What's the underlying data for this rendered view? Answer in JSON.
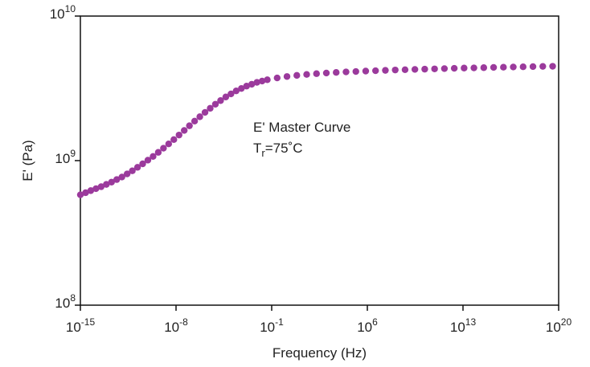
{
  "chart_data": {
    "type": "scatter",
    "xlabel": "Frequency (Hz)",
    "ylabel": "E' (Pa)",
    "x_scale": "log",
    "y_scale": "log",
    "xlim": [
      1e-15,
      1e+20
    ],
    "ylim": [
      100000000.0,
      10000000000.0
    ],
    "x_ticks": [
      {
        "base": "10",
        "exp": "-15",
        "value": 1e-15
      },
      {
        "base": "10",
        "exp": "-8",
        "value": 1e-08
      },
      {
        "base": "10",
        "exp": "-1",
        "value": 0.1
      },
      {
        "base": "10",
        "exp": "6",
        "value": 1000000.0
      },
      {
        "base": "10",
        "exp": "13",
        "value": 10000000000000.0
      },
      {
        "base": "10",
        "exp": "20",
        "value": 1e+20
      }
    ],
    "y_ticks": [
      {
        "base": "10",
        "exp": "8",
        "value": 100000000.0
      },
      {
        "base": "10",
        "exp": "9",
        "value": 1000000000.0
      },
      {
        "base": "10",
        "exp": "10",
        "value": 10000000000.0
      }
    ],
    "annotation": {
      "line1": "E' Master Curve",
      "line2_main": "T",
      "line2_sub": "r",
      "line2_rest": "=75˚C"
    },
    "grid": false,
    "marker_color": "#9b3a9c",
    "series": [
      {
        "log10_x": [
          -15.0,
          -14.24,
          -13.48,
          -12.72,
          -11.96,
          -11.2,
          -10.44,
          -9.67,
          -8.91,
          -8.15,
          -7.39,
          -6.63,
          -5.87,
          -5.11,
          -4.35,
          -3.59,
          -2.83,
          -2.07,
          -1.3,
          -0.54,
          0.22,
          0.98,
          1.74,
          2.5,
          3.26,
          4.02,
          4.78,
          5.54,
          6.3,
          7.07,
          7.83,
          8.59,
          9.35,
          10.11,
          10.87,
          11.63,
          12.39,
          13.15,
          13.91,
          14.67,
          15.43,
          16.2,
          16.96,
          17.72,
          18.48,
          19.24,
          20.0
        ],
        "y": [
          580000000.0,
          620000000.0,
          660000000.0,
          710000000.0,
          770000000.0,
          850000000.0,
          950000000.0,
          1070000000.0,
          1220000000.0,
          1400000000.0,
          1620000000.0,
          1880000000.0,
          2160000000.0,
          2460000000.0,
          2760000000.0,
          3040000000.0,
          3280000000.0,
          3480000000.0,
          3630000000.0,
          3740000000.0,
          3830000000.0,
          3900000000.0,
          3960000000.0,
          4010000000.0,
          4050000000.0,
          4090000000.0,
          4120000000.0,
          4150000000.0,
          4180000000.0,
          4200000000.0,
          4230000000.0,
          4250000000.0,
          4270000000.0,
          4290000000.0,
          4310000000.0,
          4330000000.0,
          4350000000.0,
          4370000000.0,
          4380000000.0,
          4400000000.0,
          4420000000.0,
          4430000000.0,
          4450000000.0,
          4460000000.0,
          4480000000.0,
          4490000000.0,
          4500000000.0
        ]
      }
    ]
  }
}
